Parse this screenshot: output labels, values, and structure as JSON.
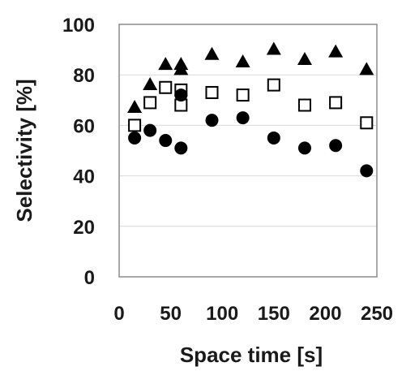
{
  "chart_data": {
    "type": "scatter",
    "title": "",
    "xlabel": "Space time [s]",
    "ylabel": "Selectivity [%]",
    "xlim": [
      0,
      250
    ],
    "ylim": [
      0,
      100
    ],
    "xticks": [
      "0",
      "50",
      "100",
      "150",
      "200",
      "250"
    ],
    "yticks": [
      "0",
      "20",
      "40",
      "60",
      "80",
      "100"
    ],
    "grid": "horizontal",
    "legend": "none",
    "series": [
      {
        "marker": "filled-triangle",
        "color": "#000000",
        "points": [
          [
            15,
            67
          ],
          [
            30,
            76
          ],
          [
            45,
            84
          ],
          [
            60,
            84
          ],
          [
            60,
            82
          ],
          [
            90,
            88
          ],
          [
            120,
            85
          ],
          [
            150,
            90
          ],
          [
            180,
            86
          ],
          [
            210,
            89
          ],
          [
            240,
            82
          ]
        ]
      },
      {
        "marker": "open-square",
        "color": "#000000",
        "points": [
          [
            15,
            60
          ],
          [
            30,
            69
          ],
          [
            45,
            75
          ],
          [
            60,
            74
          ],
          [
            60,
            68
          ],
          [
            90,
            73
          ],
          [
            120,
            72
          ],
          [
            150,
            76
          ],
          [
            180,
            68
          ],
          [
            210,
            69
          ],
          [
            240,
            61
          ]
        ]
      },
      {
        "marker": "filled-circle",
        "color": "#000000",
        "points": [
          [
            15,
            55
          ],
          [
            30,
            58
          ],
          [
            45,
            54
          ],
          [
            60,
            51
          ],
          [
            60,
            72
          ],
          [
            90,
            62
          ],
          [
            120,
            63
          ],
          [
            150,
            55
          ],
          [
            180,
            51
          ],
          [
            210,
            52
          ],
          [
            240,
            42
          ]
        ]
      }
    ]
  }
}
